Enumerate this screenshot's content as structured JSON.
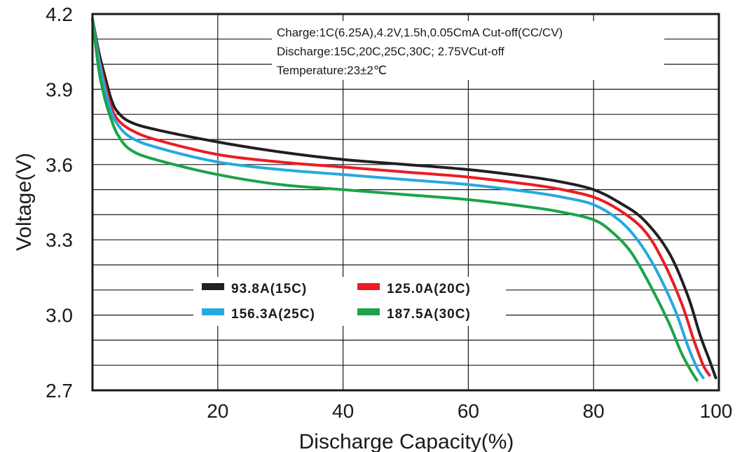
{
  "chart_data": {
    "type": "line",
    "title": "",
    "xlabel": "Discharge Capacity(%)",
    "ylabel": "Voltage(V)",
    "xlim": [
      0,
      100
    ],
    "ylim": [
      2.7,
      4.2
    ],
    "x_ticks": [
      20,
      40,
      60,
      80,
      100
    ],
    "y_ticks": [
      2.7,
      3.0,
      3.3,
      3.6,
      3.9,
      4.2
    ],
    "grid": true,
    "annotations": [
      "Charge:1C(6.25A),4.2V,1.5h,0.05CmA Cut-off(CC/CV)",
      "Discharge:15C,20C,25C,30C; 2.75VCut-off",
      "Temperature:23±2℃"
    ],
    "legend_placement": "lower-center",
    "series": [
      {
        "name": "93.8A(15C)",
        "color": "#231f20",
        "x": [
          0,
          1,
          2,
          3,
          4,
          6,
          10,
          20,
          30,
          40,
          50,
          60,
          70,
          75,
          80,
          84,
          88,
          92,
          95,
          97,
          98.5,
          99.5
        ],
        "y": [
          4.18,
          4.05,
          3.95,
          3.86,
          3.81,
          3.77,
          3.74,
          3.69,
          3.65,
          3.62,
          3.6,
          3.58,
          3.55,
          3.53,
          3.5,
          3.45,
          3.38,
          3.25,
          3.08,
          2.92,
          2.82,
          2.75
        ]
      },
      {
        "name": "125.0A(20C)",
        "color": "#ed1c24",
        "x": [
          0,
          1,
          2,
          3,
          4,
          6,
          10,
          20,
          30,
          40,
          50,
          60,
          70,
          75,
          80,
          84,
          88,
          91,
          94,
          96,
          97.5,
          98.5
        ],
        "y": [
          4.18,
          4.03,
          3.92,
          3.83,
          3.78,
          3.74,
          3.7,
          3.64,
          3.61,
          3.59,
          3.57,
          3.55,
          3.52,
          3.5,
          3.47,
          3.42,
          3.34,
          3.22,
          3.05,
          2.9,
          2.8,
          2.76
        ]
      },
      {
        "name": "156.3A(25C)",
        "color": "#26a9e0",
        "x": [
          0,
          1,
          2,
          3,
          4,
          6,
          10,
          20,
          30,
          40,
          50,
          60,
          70,
          75,
          80,
          84,
          87,
          90,
          93,
          95,
          96.5,
          97.5
        ],
        "y": [
          4.18,
          4.02,
          3.9,
          3.81,
          3.76,
          3.71,
          3.67,
          3.61,
          3.58,
          3.56,
          3.54,
          3.52,
          3.49,
          3.47,
          3.44,
          3.38,
          3.3,
          3.18,
          3.02,
          2.88,
          2.79,
          2.75
        ]
      },
      {
        "name": "187.5A(30C)",
        "color": "#1ba34a",
        "x": [
          0,
          1,
          2,
          3,
          4,
          6,
          10,
          20,
          30,
          40,
          50,
          60,
          70,
          75,
          80,
          83,
          86,
          89,
          92,
          94,
          95.5,
          96.5
        ],
        "y": [
          4.18,
          3.98,
          3.86,
          3.78,
          3.72,
          3.66,
          3.62,
          3.56,
          3.52,
          3.5,
          3.48,
          3.46,
          3.43,
          3.41,
          3.38,
          3.33,
          3.25,
          3.12,
          2.97,
          2.85,
          2.78,
          2.74
        ]
      }
    ]
  }
}
